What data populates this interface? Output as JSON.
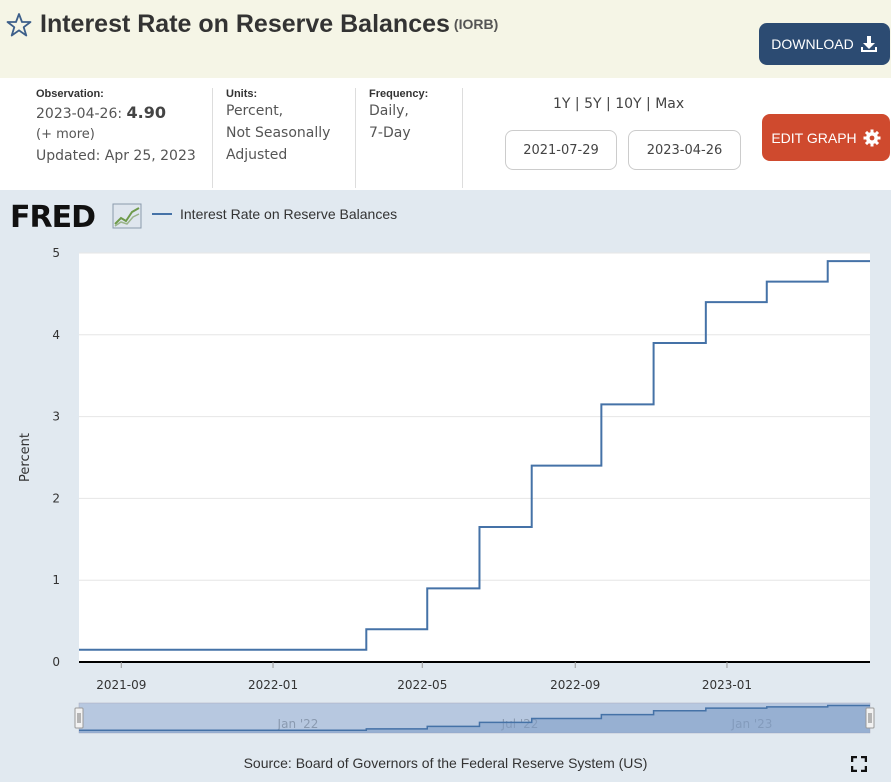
{
  "header": {
    "title": "Interest Rate on Reserve Balances",
    "series_code": "(IORB)",
    "download_label": "DOWNLOAD"
  },
  "meta": {
    "observation_label": "Observation:",
    "observation_date": "2023-04-26:",
    "observation_value": "4.90",
    "more_label": "(+ more)",
    "updated": "Updated: Apr 25, 2023",
    "units_label": "Units:",
    "units_lines": [
      "Percent,",
      "Not Seasonally",
      "Adjusted"
    ],
    "frequency_label": "Frequency:",
    "frequency_lines": [
      "Daily,",
      "7-Day"
    ]
  },
  "range_options": [
    "1Y",
    "5Y",
    "10Y",
    "Max"
  ],
  "date_range": {
    "start": "2021-07-29",
    "end": "2023-04-26"
  },
  "edit_graph_label": "EDIT GRAPH",
  "legend": {
    "logo": "FRED",
    "series_name": "Interest Rate on Reserve Balances"
  },
  "source": "Source: Board of Governors of the Federal Reserve System (US)",
  "colors": {
    "series": "#4572a7",
    "download": "#2c4b72",
    "edit": "#cf4a2e",
    "panel": "#e1e9f0"
  },
  "chart_data": {
    "type": "line",
    "step": true,
    "ylabel": "Percent",
    "ylim": [
      0,
      5
    ],
    "yticks": [
      0,
      1,
      2,
      3,
      4,
      5
    ],
    "xlim": [
      "2021-07-29",
      "2023-04-26"
    ],
    "xticks": [
      "2021-09",
      "2022-01",
      "2022-05",
      "2022-09",
      "2023-01"
    ],
    "navigator_labels": [
      "Jan '22",
      "Jul '22",
      "Jan '23"
    ],
    "grid": true,
    "series": [
      {
        "name": "Interest Rate on Reserve Balances",
        "points": [
          [
            "2021-07-29",
            0.15
          ],
          [
            "2022-03-17",
            0.4
          ],
          [
            "2022-05-05",
            0.9
          ],
          [
            "2022-06-16",
            1.65
          ],
          [
            "2022-07-28",
            2.4
          ],
          [
            "2022-09-22",
            3.15
          ],
          [
            "2022-11-03",
            3.9
          ],
          [
            "2022-12-15",
            4.4
          ],
          [
            "2023-02-02",
            4.65
          ],
          [
            "2023-03-23",
            4.9
          ],
          [
            "2023-04-26",
            4.9
          ]
        ]
      }
    ]
  }
}
